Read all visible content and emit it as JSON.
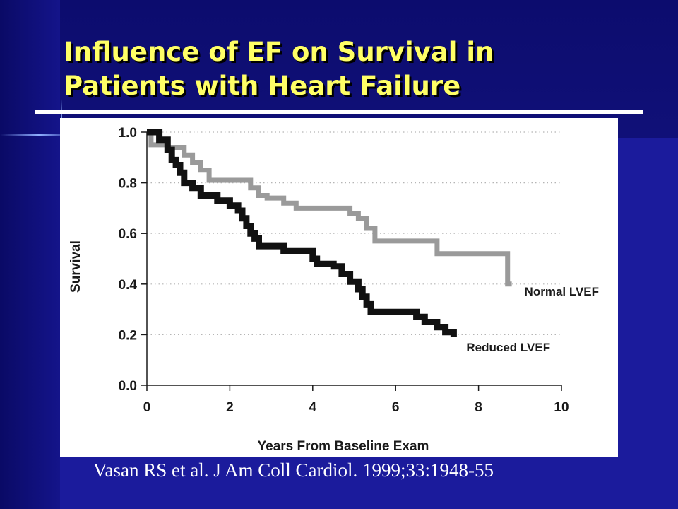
{
  "slide": {
    "title_line1": "Influence of EF on Survival in",
    "title_line2": "Patients with Heart Failure",
    "citation": "Vasan RS et al. J Am Coll Cardiol. 1999;33:1948-55",
    "colors": {
      "background": "#1b1b9c",
      "title": "#ffff66",
      "citation": "#ffffff"
    }
  },
  "chart_data": {
    "type": "line",
    "step": true,
    "xlabel": "Years From Baseline Exam",
    "ylabel": "Survival",
    "xlim": [
      0,
      10
    ],
    "ylim": [
      0,
      1.0
    ],
    "xticks": [
      "0",
      "2",
      "4",
      "6",
      "8",
      "10"
    ],
    "yticks": [
      "0.0",
      "0.2",
      "0.4",
      "0.6",
      "0.8",
      "1.0"
    ],
    "grid": "dotted horizontal",
    "series": [
      {
        "name": "Normal LVEF",
        "color": "#9a9a9a",
        "x": [
          0,
          0.1,
          0.5,
          0.9,
          1.1,
          1.3,
          1.5,
          2.0,
          2.5,
          2.7,
          2.9,
          3.3,
          3.6,
          3.9,
          4.5,
          4.9,
          5.1,
          5.3,
          5.5,
          6.0,
          6.5,
          7.0,
          7.5,
          8.2,
          8.7,
          8.8
        ],
        "y": [
          1.0,
          0.95,
          0.94,
          0.91,
          0.88,
          0.85,
          0.81,
          0.81,
          0.78,
          0.75,
          0.74,
          0.72,
          0.7,
          0.7,
          0.7,
          0.68,
          0.66,
          0.62,
          0.57,
          0.57,
          0.57,
          0.52,
          0.52,
          0.52,
          0.4,
          0.4
        ]
      },
      {
        "name": "Reduced LVEF",
        "color": "#111111",
        "x": [
          0,
          0.3,
          0.5,
          0.6,
          0.7,
          0.8,
          0.9,
          1.1,
          1.3,
          1.7,
          2.0,
          2.2,
          2.3,
          2.4,
          2.5,
          2.6,
          2.7,
          3.1,
          3.3,
          3.5,
          4.0,
          4.1,
          4.5,
          4.7,
          4.9,
          5.1,
          5.2,
          5.3,
          5.4,
          6.0,
          6.5,
          6.7,
          7.0,
          7.2,
          7.4
        ],
        "y": [
          1.0,
          0.97,
          0.93,
          0.89,
          0.87,
          0.84,
          0.8,
          0.78,
          0.75,
          0.73,
          0.71,
          0.69,
          0.66,
          0.63,
          0.6,
          0.58,
          0.55,
          0.55,
          0.53,
          0.53,
          0.5,
          0.48,
          0.47,
          0.44,
          0.41,
          0.38,
          0.35,
          0.32,
          0.29,
          0.29,
          0.27,
          0.25,
          0.23,
          0.21,
          0.19
        ]
      }
    ]
  }
}
